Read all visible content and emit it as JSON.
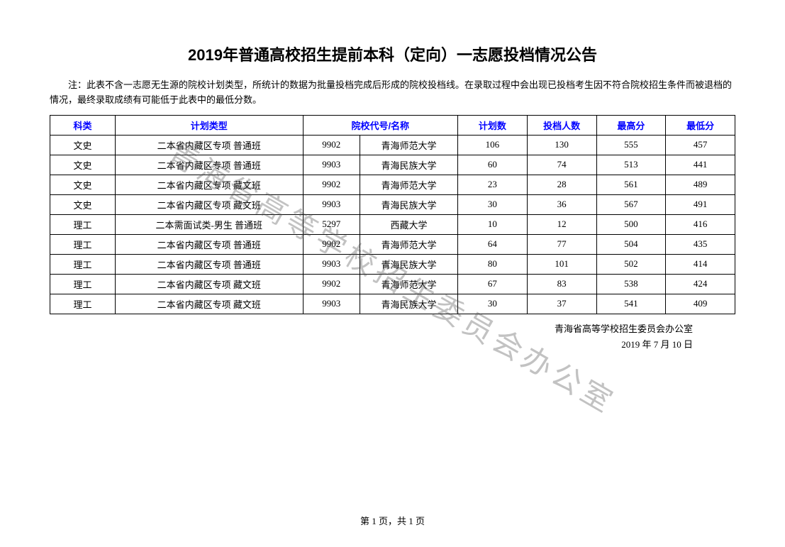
{
  "title": "2019年普通高校招生提前本科（定向）一志愿投档情况公告",
  "note": "注：此表不含一志愿无生源的院校计划类型，所统计的数据为批量投档完成后形成的院校投档线。在录取过程中会出现已投档考生因不符合院校招生条件而被退档的情况，最终录取成绩有可能低于此表中的最低分数。",
  "headers": {
    "kelei": "科类",
    "plan_type": "计划类型",
    "school": "院校代号/名称",
    "plan_count": "计划数",
    "applied": "投档人数",
    "max_score": "最高分",
    "min_score": "最低分"
  },
  "rows": [
    {
      "kelei": "文史",
      "plan_type": "二本省内藏区专项  普通班",
      "code": "9902",
      "name": "青海师范大学",
      "plan_count": "106",
      "applied": "130",
      "max": "555",
      "min": "457"
    },
    {
      "kelei": "文史",
      "plan_type": "二本省内藏区专项  普通班",
      "code": "9903",
      "name": "青海民族大学",
      "plan_count": "60",
      "applied": "74",
      "max": "513",
      "min": "441"
    },
    {
      "kelei": "文史",
      "plan_type": "二本省内藏区专项  藏文班",
      "code": "9902",
      "name": "青海师范大学",
      "plan_count": "23",
      "applied": "28",
      "max": "561",
      "min": "489"
    },
    {
      "kelei": "文史",
      "plan_type": "二本省内藏区专项  藏文班",
      "code": "9903",
      "name": "青海民族大学",
      "plan_count": "30",
      "applied": "36",
      "max": "567",
      "min": "491"
    },
    {
      "kelei": "理工",
      "plan_type": "二本需面试类-男生  普通班",
      "code": "5297",
      "name": "西藏大学",
      "plan_count": "10",
      "applied": "12",
      "max": "500",
      "min": "416"
    },
    {
      "kelei": "理工",
      "plan_type": "二本省内藏区专项  普通班",
      "code": "9902",
      "name": "青海师范大学",
      "plan_count": "64",
      "applied": "77",
      "max": "504",
      "min": "435"
    },
    {
      "kelei": "理工",
      "plan_type": "二本省内藏区专项  普通班",
      "code": "9903",
      "name": "青海民族大学",
      "plan_count": "80",
      "applied": "101",
      "max": "502",
      "min": "414"
    },
    {
      "kelei": "理工",
      "plan_type": "二本省内藏区专项  藏文班",
      "code": "9902",
      "name": "青海师范大学",
      "plan_count": "67",
      "applied": "83",
      "max": "538",
      "min": "424"
    },
    {
      "kelei": "理工",
      "plan_type": "二本省内藏区专项  藏文班",
      "code": "9903",
      "name": "青海民族大学",
      "plan_count": "30",
      "applied": "37",
      "max": "541",
      "min": "409"
    }
  ],
  "signature": {
    "org": "青海省高等学校招生委员会办公室",
    "date": "2019 年 7 月 10 日"
  },
  "pager": "第 1 页，共 1 页",
  "watermark": "青海省高等学校招生委员会办公室"
}
